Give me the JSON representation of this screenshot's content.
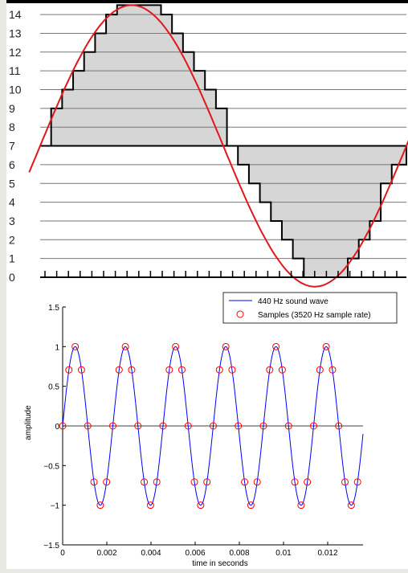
{
  "chart_data": [
    {
      "type": "line",
      "title": "",
      "xlabel": "",
      "ylabel": "",
      "yticks": [
        "0",
        "1",
        "2",
        "3",
        "4",
        "5",
        "6",
        "7",
        "8",
        "9",
        "10",
        "11",
        "12",
        "13",
        "14"
      ],
      "ylim": [
        0,
        14.5
      ],
      "x_tick_count": 31,
      "baseline": 7,
      "series": [
        {
          "kind": "analog-signal",
          "color": "#e0171b",
          "function": "7 + 7.5*sin(2*pi*x)",
          "x_range": [
            -0.03,
            1.03
          ]
        },
        {
          "kind": "quantized-steps",
          "color": "#000000",
          "x": [
            0,
            0.03,
            0.06,
            0.09,
            0.12,
            0.15,
            0.18,
            0.21,
            0.24,
            0.27,
            0.3,
            0.33,
            0.36,
            0.39,
            0.42,
            0.45,
            0.48,
            0.51,
            0.54,
            0.57,
            0.6,
            0.63,
            0.66,
            0.69,
            0.72,
            0.75,
            0.78,
            0.81,
            0.84,
            0.87,
            0.9,
            0.93,
            0.96,
            1.0
          ],
          "values": [
            7,
            9,
            10,
            11,
            12,
            13,
            14,
            14.5,
            14.5,
            14.5,
            14.5,
            14,
            13,
            12,
            11,
            10,
            9,
            7,
            6,
            5,
            4,
            3,
            2,
            1,
            0,
            0,
            0,
            0,
            1,
            2,
            3,
            5,
            6,
            7
          ]
        }
      ]
    },
    {
      "type": "line",
      "title": "",
      "xlabel": "time in seconds",
      "ylabel": "amplitude",
      "xlim": [
        0,
        0.0136
      ],
      "ylim": [
        -1.5,
        1.5
      ],
      "xticks": [
        0,
        0.002,
        0.004,
        0.006,
        0.008,
        0.01,
        0.012
      ],
      "xtick_labels": [
        "0",
        "0.002",
        "0.004",
        "0.006",
        "0.008",
        "0.01",
        "0.012"
      ],
      "yticks": [
        -1.5,
        -1,
        -0.5,
        0,
        0.5,
        1,
        1.5
      ],
      "ytick_labels": [
        "−1.5",
        "−1",
        "−0.5",
        "0",
        "0.5",
        "1",
        "1.5"
      ],
      "legend": {
        "placement": "top-right"
      },
      "series": [
        {
          "name": "440 Hz sound wave",
          "style": "line",
          "color": "#0000ff",
          "function": "sin(2*pi*440*t)"
        },
        {
          "name": "Samples (3520 Hz sample rate)",
          "style": "markers",
          "color": "#ff0000",
          "sample_rate_hz": 3520,
          "count": 48
        }
      ]
    }
  ]
}
